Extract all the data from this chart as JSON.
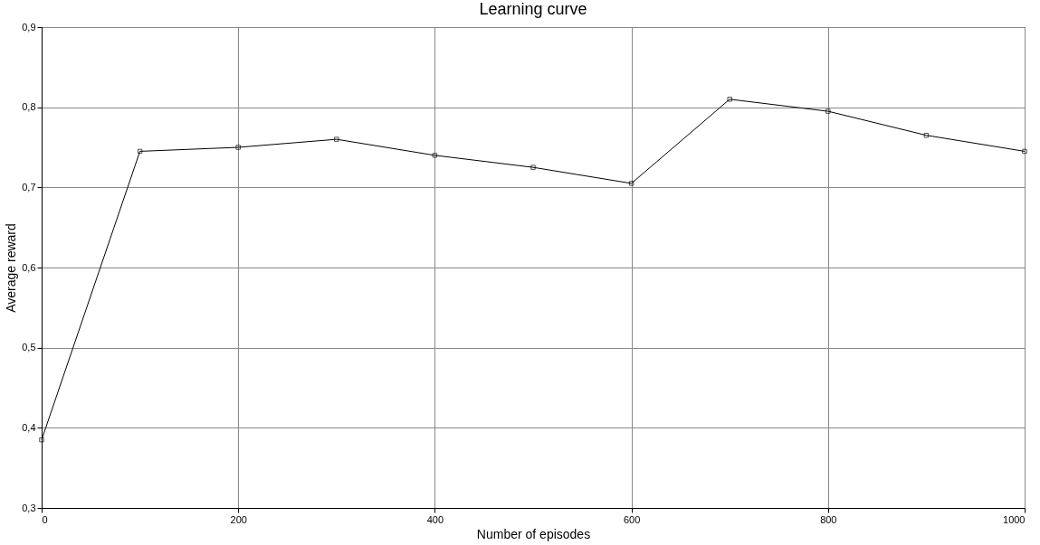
{
  "chart_data": {
    "type": "line",
    "title": "Learning curve",
    "xlabel": "Number of episodes",
    "ylabel": "Average reward",
    "x": [
      0,
      100,
      200,
      300,
      400,
      500,
      600,
      700,
      800,
      900,
      1000
    ],
    "series": [
      {
        "color": "#000000",
        "values": [
          0.385,
          0.745,
          0.75,
          0.76,
          0.74,
          0.725,
          0.705,
          0.81,
          0.795,
          0.765,
          0.745
        ]
      }
    ],
    "xlim": [
      0,
      1000
    ],
    "xticks": [
      0,
      200,
      400,
      600,
      800,
      1000
    ],
    "ylim": [
      0.3,
      0.9
    ],
    "yticks": [
      {
        "value": 0.3,
        "label": "0,3"
      },
      {
        "value": 0.4,
        "label": "0,4"
      },
      {
        "value": 0.5,
        "label": "0,5"
      },
      {
        "value": 0.6,
        "label": "0,6"
      },
      {
        "value": 0.7,
        "label": "0,7"
      },
      {
        "value": 0.8,
        "label": "0,8"
      },
      {
        "value": 0.9,
        "label": "0,9"
      }
    ],
    "grid": true,
    "marker": "square",
    "line_style": "solid"
  }
}
